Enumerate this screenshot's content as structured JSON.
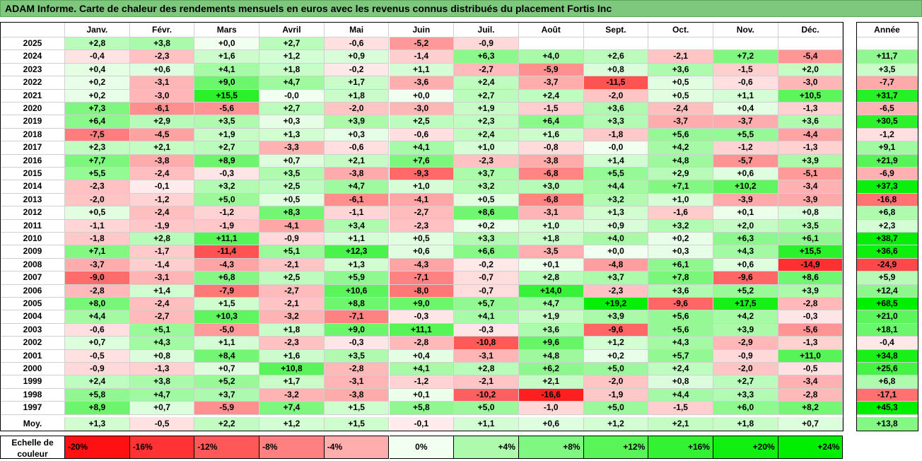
{
  "title": "ADAM Informe. Carte de chaleur des rendements mensuels en euros avec les revenus connus distribués du placement Fortis Inc",
  "chart_data": {
    "type": "heatmap",
    "months": [
      "Janv.",
      "Févr.",
      "Mars",
      "Avril",
      "Mai",
      "Juin",
      "Juil.",
      "Août",
      "Sept.",
      "Oct.",
      "Nov.",
      "Déc."
    ],
    "year_header": "Année",
    "rows": [
      {
        "year": "2025",
        "values": [
          "+2,8",
          "+3,8",
          "+0,0",
          "+2,7",
          "-0,6",
          "-5,2",
          "-0,9",
          "",
          "",
          "",
          "",
          ""
        ],
        "annual": ""
      },
      {
        "year": "2024",
        "values": [
          "-0,4",
          "-2,3",
          "+1,6",
          "+1,2",
          "+0,9",
          "-1,4",
          "+6,3",
          "+4,0",
          "+2,6",
          "-2,1",
          "+7,2",
          "-5,4"
        ],
        "annual": "+11,7"
      },
      {
        "year": "2023",
        "values": [
          "+0,4",
          "+0,6",
          "+4,1",
          "+1,8",
          "-0,2",
          "+1,1",
          "-2,7",
          "-5,9",
          "+0,8",
          "+3,6",
          "-1,5",
          "+2,0"
        ],
        "annual": "+3,5"
      },
      {
        "year": "2022",
        "values": [
          "+0,2",
          "-3,1",
          "+9,0",
          "+4,7",
          "+1,7",
          "-3,6",
          "+2,4",
          "-3,7",
          "-11,5",
          "+0,5",
          "-0,6",
          "-3,0"
        ],
        "annual": "-7,7"
      },
      {
        "year": "2021",
        "values": [
          "+0,2",
          "-3,0",
          "+15,5",
          "-0,0",
          "+1,8",
          "+0,0",
          "+2,7",
          "+2,4",
          "-2,0",
          "+0,5",
          "+1,1",
          "+10,5"
        ],
        "annual": "+31,7"
      },
      {
        "year": "2020",
        "values": [
          "+7,3",
          "-6,1",
          "-5,6",
          "+2,7",
          "-2,0",
          "-3,0",
          "+1,9",
          "-1,5",
          "+3,6",
          "-2,4",
          "+0,4",
          "-1,3"
        ],
        "annual": "-6,5"
      },
      {
        "year": "2019",
        "values": [
          "+6,4",
          "+2,9",
          "+3,5",
          "+0,3",
          "+3,9",
          "+2,5",
          "+2,3",
          "+6,4",
          "+3,3",
          "-3,7",
          "-3,7",
          "+3,6"
        ],
        "annual": "+30,5"
      },
      {
        "year": "2018",
        "values": [
          "-7,5",
          "-4,5",
          "+1,9",
          "+1,3",
          "+0,3",
          "-0,6",
          "+2,4",
          "+1,6",
          "-1,8",
          "+5,6",
          "+5,5",
          "-4,4"
        ],
        "annual": "-1,2"
      },
      {
        "year": "2017",
        "values": [
          "+2,3",
          "+2,1",
          "+2,7",
          "-3,3",
          "-0,6",
          "+4,1",
          "+1,0",
          "-0,8",
          "-0,0",
          "+4,2",
          "-1,2",
          "-1,3"
        ],
        "annual": "+9,1"
      },
      {
        "year": "2016",
        "values": [
          "+7,7",
          "-3,8",
          "+8,9",
          "+0,7",
          "+2,1",
          "+7,6",
          "-2,3",
          "-3,8",
          "+1,4",
          "+4,8",
          "-5,7",
          "+3,9"
        ],
        "annual": "+21,9"
      },
      {
        "year": "2015",
        "values": [
          "+5,5",
          "-2,4",
          "-0,3",
          "+3,5",
          "-3,8",
          "-9,3",
          "+3,7",
          "-6,8",
          "+5,5",
          "+2,9",
          "+0,6",
          "-5,1"
        ],
        "annual": "-6,9"
      },
      {
        "year": "2014",
        "values": [
          "-2,3",
          "-0,1",
          "+3,2",
          "+2,5",
          "+4,7",
          "+1,0",
          "+3,2",
          "+3,0",
          "+4,4",
          "+7,1",
          "+10,2",
          "-3,4"
        ],
        "annual": "+37,3"
      },
      {
        "year": "2013",
        "values": [
          "-2,0",
          "-1,2",
          "+5,0",
          "+0,5",
          "-6,1",
          "-4,1",
          "+0,5",
          "-6,8",
          "+3,2",
          "+1,0",
          "-3,9",
          "-3,9"
        ],
        "annual": "-16,8"
      },
      {
        "year": "2012",
        "values": [
          "+0,5",
          "-2,4",
          "-1,2",
          "+8,3",
          "-1,1",
          "-2,7",
          "+8,6",
          "-3,1",
          "+1,3",
          "-1,6",
          "+0,1",
          "+0,8"
        ],
        "annual": "+6,8"
      },
      {
        "year": "2011",
        "values": [
          "-1,1",
          "-1,9",
          "-1,9",
          "-4,1",
          "+3,4",
          "-2,3",
          "+0,2",
          "+1,0",
          "+0,9",
          "+3,2",
          "+2,0",
          "+3,5"
        ],
        "annual": "+2,3"
      },
      {
        "year": "2010",
        "values": [
          "-1,8",
          "+2,8",
          "+11,1",
          "-0,9",
          "+1,1",
          "+0,5",
          "+3,3",
          "+1,8",
          "+4,0",
          "+0,2",
          "+6,3",
          "+6,1"
        ],
        "annual": "+38,7"
      },
      {
        "year": "2009",
        "values": [
          "+7,1",
          "-1,7",
          "-11,4",
          "+5,1",
          "+12,3",
          "+0,6",
          "+6,6",
          "-3,5",
          "+0,0",
          "+0,3",
          "+4,3",
          "+15,5"
        ],
        "annual": "+36,6"
      },
      {
        "year": "2008",
        "values": [
          "-3,7",
          "-1,4",
          "-4,3",
          "-2,1",
          "+1,3",
          "-4,3",
          "-0,2",
          "+0,1",
          "-4,8",
          "+6,1",
          "+0,6",
          "-14,9"
        ],
        "annual": "-24,9"
      },
      {
        "year": "2007",
        "values": [
          "-9,0",
          "-3,1",
          "+6,8",
          "+2,5",
          "+5,9",
          "-7,1",
          "-0,7",
          "+2,8",
          "+3,7",
          "+7,8",
          "-9,6",
          "+8,6"
        ],
        "annual": "+5,9"
      },
      {
        "year": "2006",
        "values": [
          "-2,8",
          "+1,4",
          "-7,9",
          "-2,7",
          "+10,6",
          "-8,0",
          "-0,7",
          "+14,0",
          "-2,3",
          "+3,6",
          "+5,2",
          "+3,9"
        ],
        "annual": "+12,4"
      },
      {
        "year": "2005",
        "values": [
          "+8,0",
          "-2,4",
          "+1,5",
          "-2,1",
          "+8,8",
          "+9,0",
          "+5,7",
          "+4,7",
          "+19,2",
          "-9,6",
          "+17,5",
          "-2,8"
        ],
        "annual": "+68,5"
      },
      {
        "year": "2004",
        "values": [
          "+4,4",
          "-2,7",
          "+10,3",
          "-3,2",
          "-7,1",
          "-0,3",
          "+4,1",
          "+1,9",
          "+3,9",
          "+5,6",
          "+4,2",
          "-0,3"
        ],
        "annual": "+21,0"
      },
      {
        "year": "2003",
        "values": [
          "-0,6",
          "+5,1",
          "-5,0",
          "+1,8",
          "+9,0",
          "+11,1",
          "-0,3",
          "+3,6",
          "-9,6",
          "+5,6",
          "+3,9",
          "-5,6"
        ],
        "annual": "+18,1"
      },
      {
        "year": "2002",
        "values": [
          "+0,7",
          "+4,3",
          "+1,1",
          "-2,3",
          "-0,3",
          "-2,8",
          "-10,8",
          "+9,6",
          "+1,2",
          "+4,3",
          "-2,9",
          "-1,3"
        ],
        "annual": "-0,4"
      },
      {
        "year": "2001",
        "values": [
          "-0,5",
          "+0,8",
          "+8,4",
          "+1,6",
          "+3,5",
          "+0,4",
          "-3,1",
          "+4,8",
          "+0,2",
          "+5,7",
          "-0,9",
          "+11,0"
        ],
        "annual": "+34,8"
      },
      {
        "year": "2000",
        "values": [
          "-0,9",
          "-1,3",
          "+0,7",
          "+10,8",
          "-2,8",
          "+4,1",
          "+2,8",
          "+6,2",
          "+5,0",
          "+2,4",
          "-2,0",
          "-0,5"
        ],
        "annual": "+25,6"
      },
      {
        "year": "1999",
        "values": [
          "+2,4",
          "+3,8",
          "+5,2",
          "+1,7",
          "-3,1",
          "-1,2",
          "-2,1",
          "+2,1",
          "-2,0",
          "+0,8",
          "+2,7",
          "-3,4"
        ],
        "annual": "+6,8"
      },
      {
        "year": "1998",
        "values": [
          "+5,8",
          "+4,7",
          "+3,7",
          "-3,2",
          "-3,8",
          "+0,1",
          "-10,2",
          "-16,6",
          "-1,9",
          "+4,4",
          "+3,3",
          "-2,8"
        ],
        "annual": "-17,1"
      },
      {
        "year": "1997",
        "values": [
          "+8,9",
          "+0,7",
          "-5,9",
          "+7,4",
          "+1,5",
          "+5,8",
          "+5,0",
          "-1,0",
          "+5,0",
          "-1,5",
          "+6,0",
          "+8,2"
        ],
        "annual": "+45,3"
      }
    ],
    "average": {
      "label": "Moy.",
      "values": [
        "+1,3",
        "-0,5",
        "+2,2",
        "+1,2",
        "+1,5",
        "-0,1",
        "+1,1",
        "+0,6",
        "+1,2",
        "+2,1",
        "+1,8",
        "+0,7"
      ],
      "annual": "+13,8"
    },
    "legend": {
      "label_line1": "Echelle de",
      "label_line2": "couleur",
      "steps": [
        "-20%",
        "-16%",
        "-12%",
        "-8%",
        "-4%",
        "0%",
        "+4%",
        "+8%",
        "+12%",
        "+16%",
        "+20%",
        "+24%"
      ],
      "step_values": [
        -20,
        -16,
        -12,
        -8,
        -4,
        0,
        4,
        8,
        12,
        16,
        20,
        24
      ]
    },
    "colors": {
      "negative": "#ff0000",
      "neutral": "#ffffff",
      "positive": "#00e600",
      "title_bg": "#7ec87e"
    }
  }
}
